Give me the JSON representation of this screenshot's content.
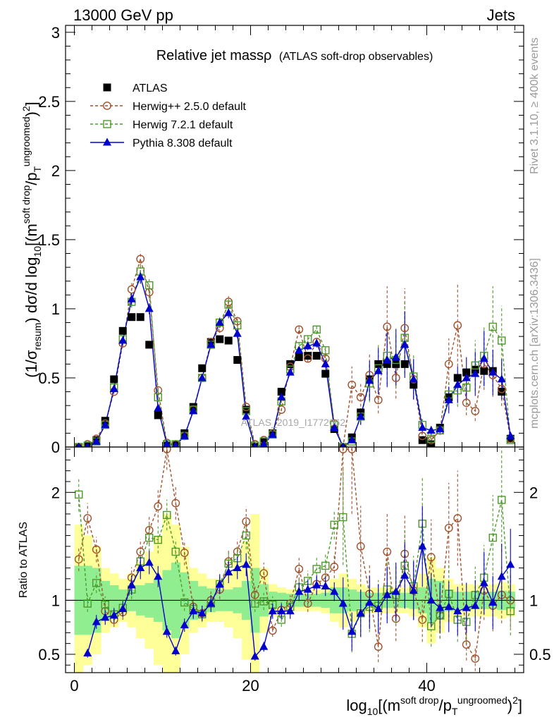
{
  "header": {
    "left": "13000 GeV pp",
    "right": "Jets",
    "rivet_note": "Rivet 3.1.10, ≥ 400k events",
    "mcplots_note": "mcplots.cern.ch [arXiv:1306.3436]",
    "watermark": "ATLAS_2019_I1772062"
  },
  "chart_data": [
    {
      "type": "scatter",
      "title": "Relative jet massρ",
      "subtitle": "(ATLAS soft-drop observables)",
      "ylabel": "(1/σresum) dσ/d log10[(m^(soft drop)/pT^(ungroomed))^2]",
      "xlabel": "log10[(m^(soft drop)/pT^(ungroomed))^2]",
      "xlim": [
        -1,
        51
      ],
      "ylim": [
        0,
        3.05
      ],
      "x_ticks": [
        "0",
        "20",
        "40"
      ],
      "y_ticks": [
        "0",
        "0.5",
        "1",
        "1.5",
        "2",
        "2.5",
        "3"
      ],
      "x": [
        0.5,
        1.5,
        2.5,
        3.5,
        4.5,
        5.5,
        6.5,
        7.5,
        8.5,
        9.5,
        10.5,
        11.5,
        12.5,
        13.5,
        14.5,
        15.5,
        16.5,
        17.5,
        18.5,
        19.5,
        20.5,
        21.5,
        22.5,
        23.5,
        24.5,
        25.5,
        26.5,
        27.5,
        28.5,
        29.5,
        30.5,
        31.5,
        32.5,
        33.5,
        34.5,
        35.5,
        36.5,
        37.5,
        38.5,
        39.5,
        40.5,
        41.5,
        42.5,
        43.5,
        44.5,
        45.5,
        46.5,
        47.5,
        48.5,
        49.5
      ],
      "series": [
        {
          "name": "ATLAS",
          "color": "#000000",
          "marker": "square",
          "values": [
            0.0,
            0.01,
            0.05,
            0.19,
            0.49,
            0.84,
            0.94,
            0.94,
            0.74,
            0.23,
            0.01,
            0.02,
            0.1,
            0.29,
            0.57,
            0.76,
            0.78,
            0.77,
            0.63,
            0.27,
            0.0,
            0.04,
            0.1,
            0.4,
            0.6,
            0.65,
            0.66,
            0.66,
            0.53,
            0.13,
            0.0,
            0.07,
            0.25,
            0.49,
            0.6,
            0.6,
            0.6,
            0.6,
            0.45,
            0.05,
            0.02,
            0.14,
            0.36,
            0.5,
            0.54,
            0.56,
            0.55,
            0.55,
            0.4,
            0.06
          ]
        },
        {
          "name": "Herwig++ 2.5.0 default",
          "color": "#a0522d",
          "marker": "circle",
          "values": [
            0.0,
            0.02,
            0.06,
            0.17,
            0.4,
            0.75,
            1.14,
            1.36,
            1.12,
            0.41,
            0.03,
            0.02,
            0.08,
            0.27,
            0.5,
            0.76,
            0.86,
            1.05,
            0.91,
            0.29,
            0.02,
            0.05,
            0.1,
            0.27,
            0.58,
            0.85,
            0.64,
            0.76,
            0.64,
            0.17,
            0.0,
            0.45,
            0.36,
            0.52,
            0.34,
            0.87,
            0.5,
            0.86,
            0.49,
            0.08,
            0.05,
            0.12,
            0.6,
            0.88,
            0.32,
            0.26,
            0.6,
            0.52,
            0.42,
            0.06
          ]
        },
        {
          "name": "Herwig 7.2.1 default",
          "color": "#4c9a2a",
          "marker": "open-square",
          "values": [
            0.0,
            0.01,
            0.04,
            0.16,
            0.43,
            0.78,
            1.05,
            1.27,
            1.17,
            0.36,
            0.02,
            0.02,
            0.08,
            0.27,
            0.5,
            0.74,
            0.9,
            1.03,
            0.88,
            0.26,
            0.01,
            0.04,
            0.09,
            0.33,
            0.56,
            0.73,
            0.78,
            0.85,
            0.7,
            0.16,
            0.0,
            0.04,
            0.22,
            0.46,
            0.57,
            0.66,
            0.63,
            0.79,
            0.51,
            0.16,
            0.06,
            0.12,
            0.38,
            0.41,
            0.43,
            0.59,
            0.66,
            0.87,
            0.77,
            0.05
          ]
        },
        {
          "name": "Pythia 8.308 default",
          "color": "#0000cc",
          "marker": "triangle",
          "values": [
            0.0,
            0.0,
            0.04,
            0.16,
            0.42,
            0.77,
            1.07,
            1.23,
            1.0,
            0.28,
            0.02,
            0.01,
            0.08,
            0.26,
            0.5,
            0.74,
            0.9,
            0.97,
            0.82,
            0.22,
            0.0,
            0.02,
            0.09,
            0.36,
            0.54,
            0.7,
            0.73,
            0.75,
            0.6,
            0.14,
            0.0,
            0.05,
            0.22,
            0.48,
            0.55,
            0.63,
            0.65,
            0.74,
            0.49,
            0.14,
            0.12,
            0.13,
            0.34,
            0.45,
            0.5,
            0.53,
            0.64,
            0.54,
            0.49,
            0.08
          ]
        }
      ]
    },
    {
      "type": "scatter",
      "title": "Ratio to ATLAS",
      "ylabel": "Ratio to ATLAS",
      "ylim": [
        0.33,
        2.42
      ],
      "y_ticks": [
        "0.5",
        "1",
        "2"
      ],
      "reference_line": 1,
      "band_inner": [
        0.32,
        0.32,
        0.3,
        0.18,
        0.14,
        0.1,
        0.1,
        0.14,
        0.16,
        0.2,
        0.28,
        0.35,
        0.26,
        0.18,
        0.13,
        0.11,
        0.1,
        0.1,
        0.12,
        0.18,
        0.3,
        0.15,
        0.08,
        0.07,
        0.06,
        0.06,
        0.06,
        0.06,
        0.07,
        0.12,
        0.12,
        0.1,
        0.08,
        0.07,
        0.07,
        0.07,
        0.07,
        0.07,
        0.08,
        0.12,
        0.2,
        0.18,
        0.1,
        0.08,
        0.08,
        0.08,
        0.08,
        0.08,
        0.09,
        0.08
      ],
      "band_outer": [
        0.7,
        0.6,
        0.5,
        0.3,
        0.25,
        0.2,
        0.25,
        0.35,
        0.45,
        0.6,
        0.8,
        0.7,
        0.5,
        0.3,
        0.25,
        0.2,
        0.2,
        0.25,
        0.35,
        0.55,
        0.8,
        0.3,
        0.15,
        0.12,
        0.1,
        0.1,
        0.1,
        0.1,
        0.12,
        0.2,
        0.25,
        0.2,
        0.15,
        0.12,
        0.12,
        0.12,
        0.12,
        0.12,
        0.15,
        0.25,
        0.4,
        0.3,
        0.2,
        0.15,
        0.15,
        0.15,
        0.15,
        0.15,
        0.17,
        0.15
      ],
      "series": [
        {
          "name": "Herwig++ 2.5.0 default",
          "color": "#a0522d",
          "marker": "circle",
          "values": [
            1.38,
            1.76,
            1.47,
            0.9,
            0.82,
            0.89,
            1.21,
            1.45,
            1.65,
            1.87,
            2.4,
            1.9,
            1.44,
            0.94,
            0.88,
            1.0,
            1.1,
            1.36,
            1.45,
            1.73,
            1.05,
            1.25,
            0.72,
            0.91,
            0.97,
            1.29,
            0.97,
            1.15,
            1.21,
            1.31,
            2.4,
            2.4,
            1.5,
            1.06,
            0.57,
            1.45,
            0.83,
            1.43,
            1.09,
            0.82,
            1.4,
            0.86,
            1.67,
            1.76,
            0.59,
            0.46,
            1.09,
            0.95,
            1.05,
            1.0
          ]
        },
        {
          "name": "Herwig 7.2.1 default",
          "color": "#4c9a2a",
          "marker": "open-square",
          "values": [
            1.98,
            0.97,
            1.16,
            0.96,
            0.87,
            0.93,
            1.1,
            1.36,
            1.58,
            1.56,
            1.79,
            1.45,
            0.98,
            0.92,
            0.87,
            0.97,
            1.15,
            1.34,
            1.39,
            1.6,
            0.97,
            0.99,
            0.96,
            0.82,
            0.94,
            1.12,
            1.18,
            1.29,
            1.32,
            1.7,
            1.77,
            0.69,
            0.88,
            0.94,
            0.95,
            1.1,
            1.05,
            1.32,
            1.13,
            1.71,
            0.76,
            0.86,
            1.06,
            0.82,
            0.8,
            1.05,
            1.21,
            1.58,
            1.93,
            0.9
          ]
        },
        {
          "name": "Pythia 8.308 default",
          "color": "#0000cc",
          "marker": "triangle",
          "values": [
            null,
            0.51,
            0.8,
            0.84,
            0.86,
            0.92,
            1.14,
            1.3,
            1.35,
            1.22,
            0.71,
            0.53,
            0.77,
            0.9,
            0.88,
            0.97,
            1.15,
            1.26,
            1.3,
            1.33,
            0.48,
            0.57,
            0.9,
            0.9,
            0.9,
            1.08,
            1.1,
            1.14,
            1.13,
            1.08,
            0.97,
            0.71,
            0.88,
            0.98,
            0.92,
            1.05,
            1.08,
            1.23,
            1.09,
            1.5,
            1.0,
            0.93,
            0.94,
            0.9,
            0.93,
            0.95,
            1.16,
            0.98,
            1.22,
            1.33
          ]
        }
      ]
    }
  ]
}
